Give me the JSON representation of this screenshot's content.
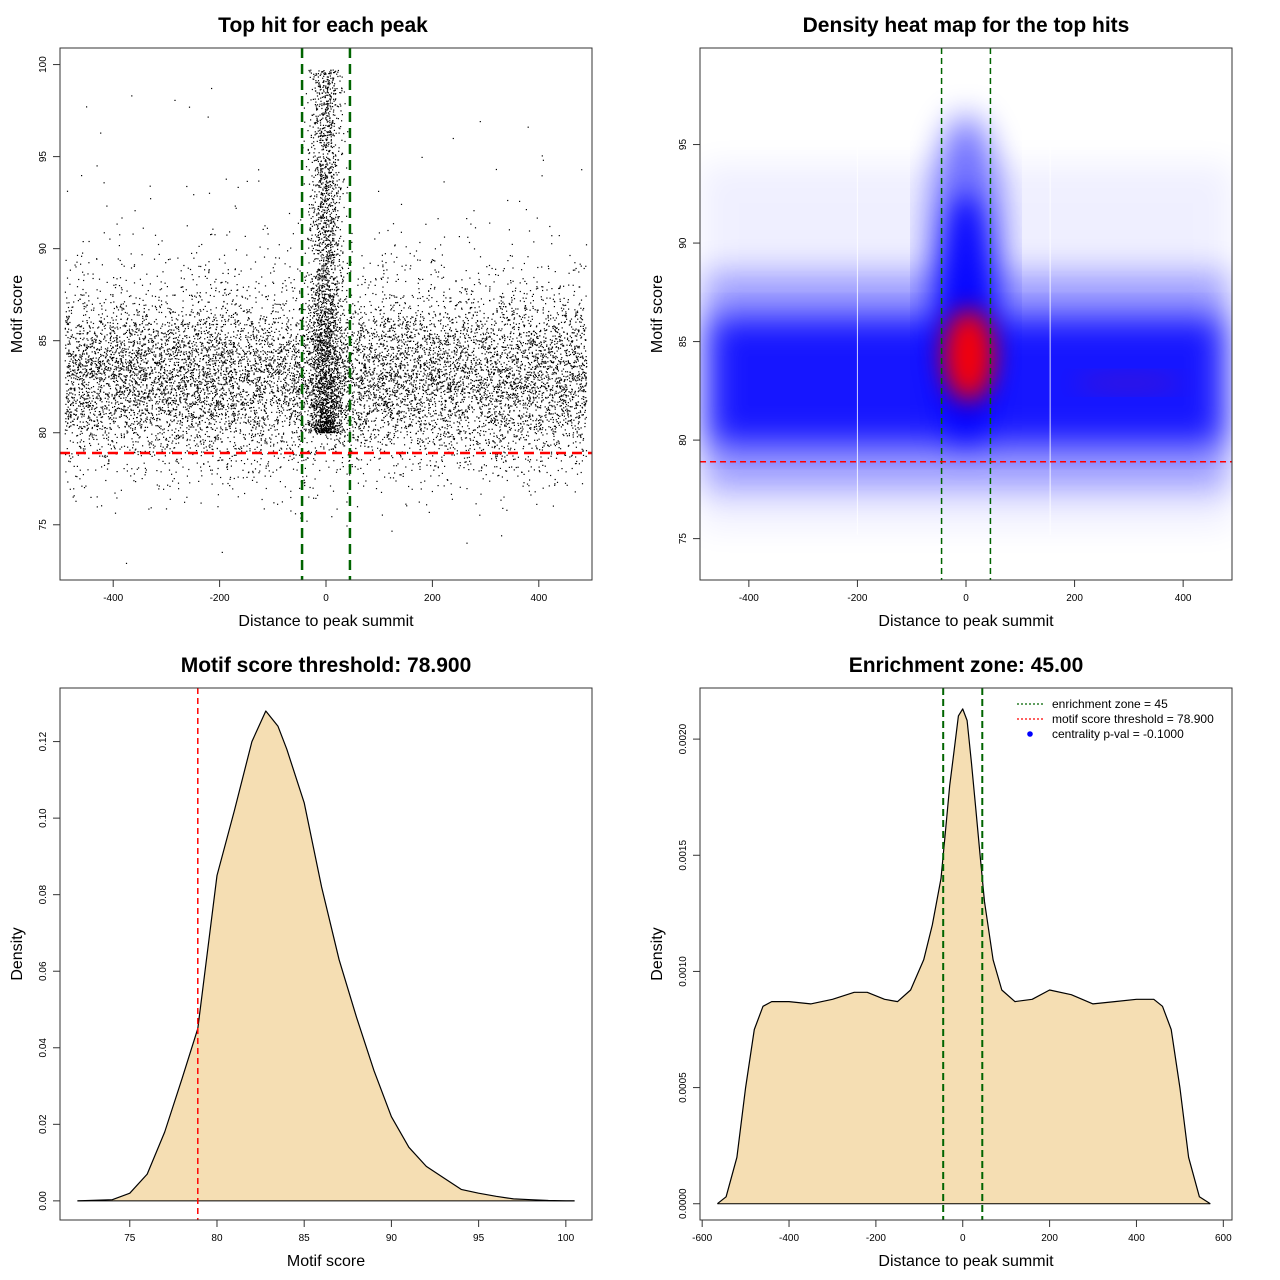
{
  "chart_data": [
    {
      "type": "scatter",
      "title": "Top hit for each peak",
      "xlabel": "Distance to peak summit",
      "ylabel": "Motif score",
      "xlim": [
        -500,
        500
      ],
      "ylim": [
        72,
        100.9
      ],
      "xticks": [
        -400,
        -200,
        0,
        200,
        400
      ],
      "yticks": [
        75,
        80,
        85,
        90,
        95,
        100
      ],
      "grid": false,
      "point_color": "#000000",
      "distribution": {
        "x_range": [
          -490,
          490
        ],
        "background_score_mean": 82.9,
        "background_score_sd": 2.4,
        "central_cluster_x_sd": 16,
        "central_cluster_score_range": [
          80,
          99.7
        ],
        "outlier_points": [
          [
            -450,
            97.7
          ],
          [
            -365,
            98.3
          ],
          [
            -215,
            98.7
          ],
          [
            -375,
            72.9
          ],
          [
            -195,
            73.5
          ],
          [
            265,
            74.0
          ],
          [
            330,
            74.4
          ],
          [
            290,
            96.9
          ],
          [
            380,
            96.6
          ]
        ]
      },
      "reference_lines": [
        {
          "axis": "x",
          "value": -45,
          "color": "#006400",
          "style": "dashed"
        },
        {
          "axis": "x",
          "value": 45,
          "color": "#006400",
          "style": "dashed"
        },
        {
          "axis": "y",
          "value": 78.9,
          "color": "#ff0000",
          "style": "dashed"
        }
      ]
    },
    {
      "type": "heatmap",
      "title": "Density heat map for the top hits",
      "xlabel": "Distance to peak summit",
      "ylabel": "Motif score",
      "xlim": [
        -490,
        490
      ],
      "ylim": [
        72.9,
        99.9
      ],
      "xticks": [
        -400,
        -200,
        0,
        200,
        400
      ],
      "yticks": [
        75,
        80,
        85,
        90,
        95
      ],
      "grid": false,
      "colors": [
        "#ffffff",
        "#0000ff",
        "#ff0000"
      ],
      "density_peak": {
        "x": 5,
        "y": 84.3
      },
      "reference_lines": [
        {
          "axis": "x",
          "value": -45,
          "color": "#006400",
          "style": "dashed"
        },
        {
          "axis": "x",
          "value": 45,
          "color": "#006400",
          "style": "dashed"
        },
        {
          "axis": "y",
          "value": 78.9,
          "color": "#ff0000",
          "style": "dashed"
        }
      ]
    },
    {
      "type": "area",
      "title": "Motif score threshold: 78.900",
      "xlabel": "Motif score",
      "ylabel": "Density",
      "xlim": [
        71,
        101.5
      ],
      "ylim": [
        -0.005,
        0.134
      ],
      "xticks": [
        75,
        80,
        85,
        90,
        95,
        100
      ],
      "yticks": [
        "0.00",
        "0.02",
        "0.04",
        "0.06",
        "0.08",
        "0.10",
        "0.12"
      ],
      "fill": "#f5deb3",
      "line": "#000000",
      "grid": false,
      "series": [
        {
          "x": [
            72,
            74,
            75,
            76,
            77,
            78,
            78.9,
            80,
            81,
            82,
            82.8,
            83.5,
            84,
            85,
            86,
            87,
            88,
            89,
            90,
            91,
            92,
            93,
            94,
            95,
            96,
            97,
            98,
            99,
            100,
            100.5
          ],
          "values": [
            0.0,
            0.0003,
            0.002,
            0.007,
            0.018,
            0.032,
            0.045,
            0.085,
            0.102,
            0.12,
            0.128,
            0.124,
            0.118,
            0.104,
            0.082,
            0.063,
            0.048,
            0.034,
            0.022,
            0.014,
            0.009,
            0.006,
            0.003,
            0.002,
            0.0012,
            0.0005,
            0.0003,
            0.0001,
            0.0,
            0.0
          ]
        }
      ],
      "reference_lines": [
        {
          "axis": "x",
          "value": 78.9,
          "color": "#ff0000",
          "style": "dashed"
        }
      ]
    },
    {
      "type": "area",
      "title": "Enrichment zone: 45.00",
      "xlabel": "Distance to peak summit",
      "ylabel": "Density",
      "xlim": [
        -605,
        620
      ],
      "ylim": [
        -7e-05,
        0.00222
      ],
      "xticks": [
        -600,
        -400,
        -200,
        0,
        200,
        400,
        600
      ],
      "yticks": [
        "0.0000",
        "0.0005",
        "0.0010",
        "0.0015",
        "0.0020"
      ],
      "fill": "#f5deb3",
      "line": "#000000",
      "grid": false,
      "series": [
        {
          "x": [
            -565,
            -545,
            -520,
            -500,
            -480,
            -460,
            -440,
            -400,
            -350,
            -300,
            -250,
            -220,
            -180,
            -150,
            -120,
            -90,
            -70,
            -50,
            -40,
            -30,
            -20,
            -10,
            0,
            10,
            20,
            30,
            40,
            50,
            70,
            90,
            120,
            160,
            200,
            250,
            300,
            350,
            400,
            440,
            460,
            480,
            500,
            520,
            545,
            570
          ],
          "values": [
            0.0,
            3e-05,
            0.0002,
            0.0005,
            0.00075,
            0.00085,
            0.00087,
            0.00087,
            0.00086,
            0.00088,
            0.00091,
            0.00091,
            0.00088,
            0.00087,
            0.00092,
            0.00105,
            0.0012,
            0.0014,
            0.0016,
            0.0018,
            0.00195,
            0.0021,
            0.00213,
            0.00208,
            0.0019,
            0.0017,
            0.0015,
            0.0013,
            0.00105,
            0.00092,
            0.00087,
            0.00088,
            0.00092,
            0.0009,
            0.00086,
            0.00087,
            0.00088,
            0.00088,
            0.00085,
            0.00075,
            0.0005,
            0.0002,
            3e-05,
            0.0
          ]
        }
      ],
      "reference_lines": [
        {
          "axis": "x",
          "value": -45,
          "color": "#006400",
          "style": "dashed"
        },
        {
          "axis": "x",
          "value": 45,
          "color": "#006400",
          "style": "dashed"
        }
      ],
      "legend": {
        "placement": "top-right",
        "entries": [
          {
            "label": "enrichment zone = 45",
            "color": "#006400",
            "style": "dotted-line"
          },
          {
            "label": "motif score threshold = 78.900",
            "color": "#ff0000",
            "style": "dotted-line"
          },
          {
            "label": "centrality p-val = -0.1000",
            "color": "#0000ff",
            "style": "point"
          }
        ]
      }
    }
  ]
}
